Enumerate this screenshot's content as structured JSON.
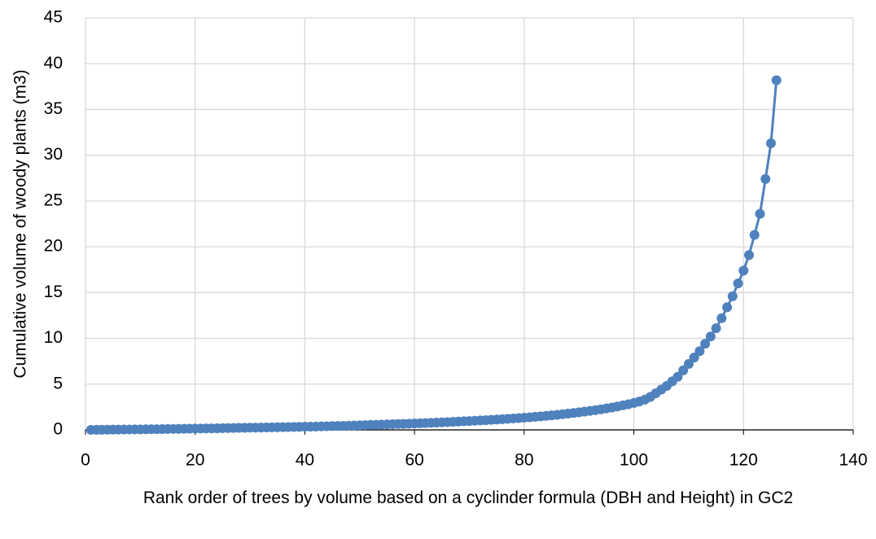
{
  "chart_data": {
    "type": "line",
    "x_label": "Rank order of trees by volume based on a cyclinder formula (DBH and Height) in GC2",
    "y_label": "Cumulative volume of woody plants (m3)",
    "x": [
      1,
      2,
      3,
      4,
      5,
      6,
      7,
      8,
      9,
      10,
      11,
      12,
      13,
      14,
      15,
      16,
      17,
      18,
      19,
      20,
      21,
      22,
      23,
      24,
      25,
      26,
      27,
      28,
      29,
      30,
      31,
      32,
      33,
      34,
      35,
      36,
      37,
      38,
      39,
      40,
      41,
      42,
      43,
      44,
      45,
      46,
      47,
      48,
      49,
      50,
      51,
      52,
      53,
      54,
      55,
      56,
      57,
      58,
      59,
      60,
      61,
      62,
      63,
      64,
      65,
      66,
      67,
      68,
      69,
      70,
      71,
      72,
      73,
      74,
      75,
      76,
      77,
      78,
      79,
      80,
      81,
      82,
      83,
      84,
      85,
      86,
      87,
      88,
      89,
      90,
      91,
      92,
      93,
      94,
      95,
      96,
      97,
      98,
      99,
      100,
      101,
      102,
      103,
      104,
      105,
      106,
      107,
      108,
      109,
      110,
      111,
      112,
      113,
      114,
      115,
      116,
      117,
      118,
      119,
      120,
      121,
      122,
      123,
      124,
      125,
      126
    ],
    "series": [
      {
        "color": "#4f81bd",
        "values": [
          0.005,
          0.01,
          0.015,
          0.02,
          0.03,
          0.035,
          0.04,
          0.05,
          0.055,
          0.06,
          0.07,
          0.075,
          0.08,
          0.09,
          0.1,
          0.105,
          0.11,
          0.12,
          0.13,
          0.14,
          0.15,
          0.16,
          0.17,
          0.18,
          0.19,
          0.2,
          0.21,
          0.22,
          0.23,
          0.24,
          0.25,
          0.26,
          0.27,
          0.28,
          0.29,
          0.3,
          0.31,
          0.32,
          0.33,
          0.35,
          0.36,
          0.37,
          0.39,
          0.4,
          0.42,
          0.43,
          0.45,
          0.46,
          0.48,
          0.5,
          0.52,
          0.54,
          0.56,
          0.58,
          0.6,
          0.62,
          0.64,
          0.66,
          0.68,
          0.7,
          0.72,
          0.74,
          0.77,
          0.8,
          0.82,
          0.85,
          0.88,
          0.91,
          0.94,
          0.97,
          1.0,
          1.03,
          1.06,
          1.1,
          1.13,
          1.17,
          1.21,
          1.25,
          1.29,
          1.33,
          1.38,
          1.43,
          1.48,
          1.53,
          1.59,
          1.65,
          1.71,
          1.78,
          1.85,
          1.92,
          2.0,
          2.08,
          2.16,
          2.25,
          2.35,
          2.45,
          2.56,
          2.68,
          2.8,
          2.95,
          3.1,
          3.3,
          3.6,
          4.0,
          4.4,
          4.8,
          5.3,
          5.8,
          6.5,
          7.2,
          7.9,
          8.6,
          9.4,
          10.2,
          11.1,
          12.2,
          13.4,
          14.6,
          16.0,
          17.4,
          19.1,
          21.3,
          23.6,
          27.4,
          31.3,
          38.2
        ]
      }
    ],
    "xlim": [
      0,
      140
    ],
    "xticks": [
      0,
      20,
      40,
      60,
      80,
      100,
      120,
      140
    ],
    "ylim": [
      0,
      45
    ],
    "yticks": [
      0,
      5,
      10,
      15,
      20,
      25,
      30,
      35,
      40,
      45
    ],
    "grid": true
  }
}
